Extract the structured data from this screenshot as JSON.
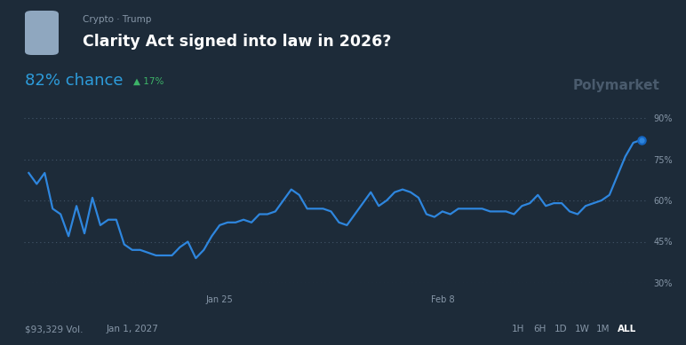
{
  "chart_data": {
    "type": "line",
    "title": "Clarity Act signed into law in 2026?",
    "subtitle": "Crypto · Trump",
    "annotations": [
      "82% chance",
      "▲ 17%",
      "Polymarket",
      "$93,329 Vol.",
      "Jan 1, 2027",
      "1H",
      "6H",
      "1D",
      "1W",
      "1M",
      "ALL"
    ],
    "categories": [
      null,
      null,
      null,
      null,
      null,
      null,
      null,
      null,
      null,
      null,
      null,
      null,
      null,
      null,
      null,
      null,
      null,
      null,
      null,
      null,
      null,
      null,
      null,
      null,
      "Jan 25",
      null,
      null,
      null,
      null,
      null,
      null,
      null,
      null,
      null,
      null,
      null,
      null,
      null,
      null,
      null,
      null,
      null,
      null,
      null,
      null,
      null,
      null,
      null,
      null,
      null,
      null,
      null,
      "Feb 8",
      null,
      null,
      null,
      null,
      null,
      null,
      null,
      null,
      null,
      null,
      null,
      null,
      null,
      null,
      null,
      null,
      null,
      null,
      null,
      null,
      null,
      null,
      null,
      null,
      null
    ],
    "values": [
      70,
      66,
      70,
      57,
      55,
      47,
      58,
      48,
      61,
      51,
      53,
      53,
      44,
      42,
      42,
      41,
      40,
      40,
      40,
      43,
      45,
      39,
      42,
      47,
      51,
      52,
      52,
      53,
      52,
      55,
      55,
      56,
      60,
      64,
      62,
      57,
      57,
      57,
      56,
      52,
      51,
      55,
      59,
      63,
      58,
      60,
      63,
      64,
      63,
      61,
      55,
      54,
      56,
      55,
      57,
      57,
      57,
      57,
      56,
      56,
      56,
      55,
      58,
      59,
      62,
      58,
      59,
      59,
      56,
      55,
      58,
      59,
      60,
      62,
      69,
      76,
      81,
      82
    ],
    "color": "#2e86de",
    "ylim": [
      30,
      90
    ],
    "yticks": [
      {
        "value": 30,
        "label": "30%"
      },
      {
        "value": 45,
        "label": "45%"
      },
      {
        "value": 60,
        "label": "60%"
      },
      {
        "value": 75,
        "label": "75%"
      },
      {
        "value": 90,
        "label": "90%"
      }
    ],
    "grid": true
  }
}
